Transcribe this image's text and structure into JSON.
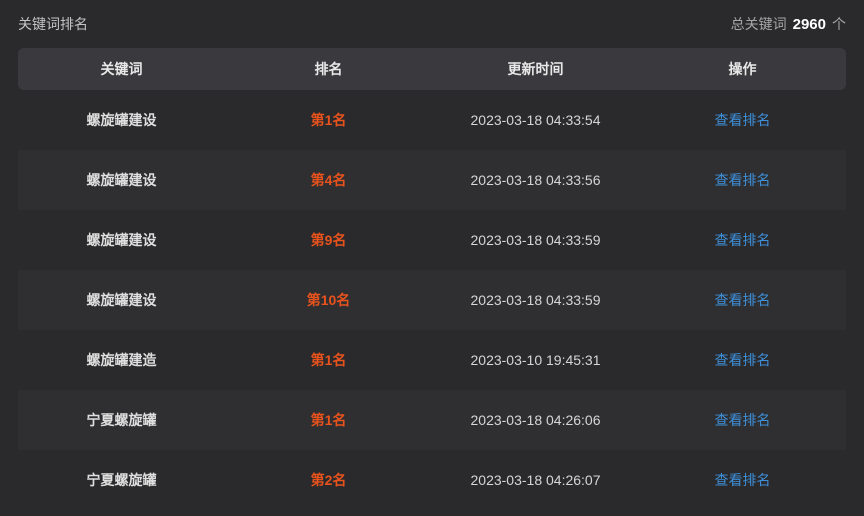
{
  "page": {
    "title": "关键词排名",
    "total_label": "总关键词",
    "total_count": "2960",
    "total_unit": "个"
  },
  "table": {
    "columns": [
      "关键词",
      "排名",
      "更新时间",
      "操作"
    ],
    "rows": [
      {
        "keyword": "螺旋罐建设",
        "rank": "第1名",
        "updated": "2023-03-18 04:33:54",
        "action": "查看排名"
      },
      {
        "keyword": "螺旋罐建设",
        "rank": "第4名",
        "updated": "2023-03-18 04:33:56",
        "action": "查看排名"
      },
      {
        "keyword": "螺旋罐建设",
        "rank": "第9名",
        "updated": "2023-03-18 04:33:59",
        "action": "查看排名"
      },
      {
        "keyword": "螺旋罐建设",
        "rank": "第10名",
        "updated": "2023-03-18 04:33:59",
        "action": "查看排名"
      },
      {
        "keyword": "螺旋罐建造",
        "rank": "第1名",
        "updated": "2023-03-10 19:45:31",
        "action": "查看排名"
      },
      {
        "keyword": "宁夏螺旋罐",
        "rank": "第1名",
        "updated": "2023-03-18 04:26:06",
        "action": "查看排名"
      },
      {
        "keyword": "宁夏螺旋罐",
        "rank": "第2名",
        "updated": "2023-03-18 04:26:07",
        "action": "查看排名"
      }
    ]
  },
  "colors": {
    "page_bg": "#2a2a2c",
    "stripe_bg": "#2f2f32",
    "header_bg": "#3a3a3e",
    "rank_orange": "#e8521d",
    "link_blue": "#3d8fd9",
    "total_count_white": "#ffffff"
  }
}
